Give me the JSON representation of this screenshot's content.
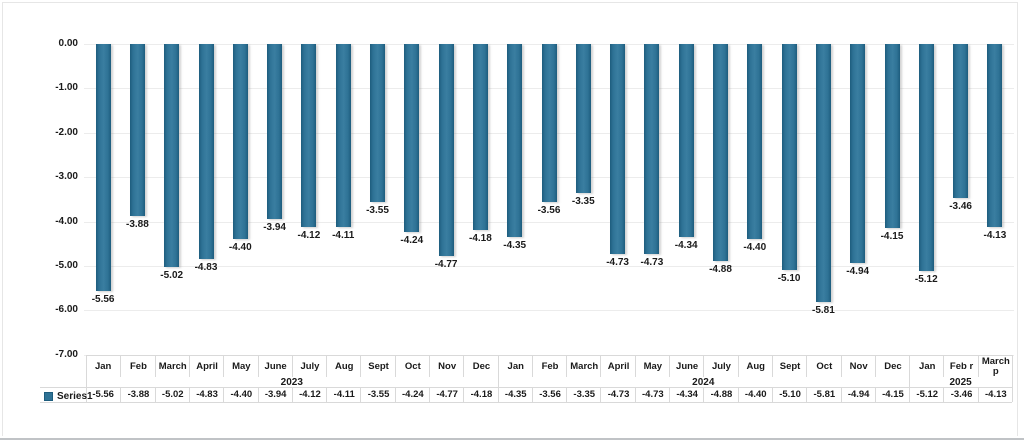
{
  "chart_data": {
    "type": "bar",
    "title": "",
    "categories": [
      "Jan",
      "Feb",
      "March",
      "April",
      "May",
      "June",
      "July",
      "Aug",
      "Sept",
      "Oct",
      "Nov",
      "Dec",
      "Jan",
      "Feb",
      "March",
      "April",
      "May",
      "June",
      "July",
      "Aug",
      "Sept",
      "Oct",
      "Nov",
      "Dec",
      "Jan",
      "Feb r",
      "March p"
    ],
    "category_groups": [
      {
        "label": "2023",
        "start": 0,
        "span": 12
      },
      {
        "label": "2024",
        "start": 12,
        "span": 12
      },
      {
        "label": "2025",
        "start": 24,
        "span": 3
      }
    ],
    "series": [
      {
        "name": "Series1",
        "values": [
          -5.56,
          -3.88,
          -5.02,
          -4.83,
          -4.4,
          -3.94,
          -4.12,
          -4.11,
          -3.55,
          -4.24,
          -4.77,
          -4.18,
          -4.35,
          -3.56,
          -3.35,
          -4.73,
          -4.73,
          -4.34,
          -4.88,
          -4.4,
          -5.1,
          -5.81,
          -4.94,
          -4.15,
          -5.12,
          -3.46,
          -4.13
        ]
      }
    ],
    "ylim": [
      -7,
      0
    ],
    "y_tick_labels": [
      "0.00",
      "-1.00",
      "-2.00",
      "-3.00",
      "-4.00",
      "-5.00",
      "-6.00",
      "-7.00"
    ],
    "grid": true,
    "data_labels": true,
    "data_table": true,
    "legend_position": "bottom-left",
    "colors": {
      "bar": "#2e7295",
      "bar_edge": "#1d5c7d",
      "grid": "#ececec",
      "table_border": "#d9d9d9",
      "text": "#1a1a1a",
      "frame_border": "#e6e6e6",
      "bottom_rule": "#c0c3c6"
    }
  }
}
